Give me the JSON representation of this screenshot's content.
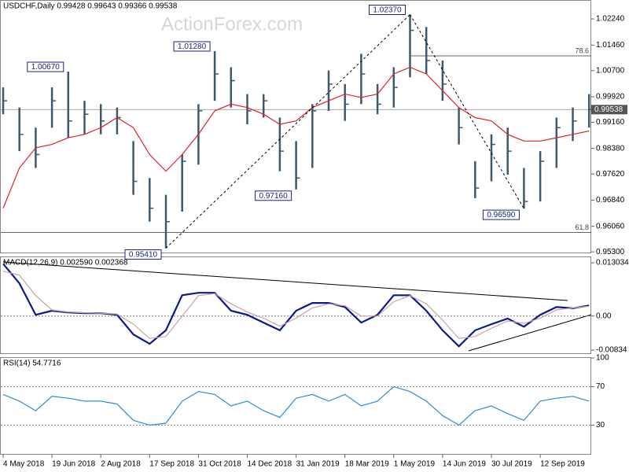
{
  "chart_data": [
    {
      "type": "hlc",
      "title": "USDCHF,Daily  0.99428 0.99643 0.99366 0.99538",
      "watermark": "ActionForex.com",
      "color": "#3d5a6c",
      "categories": [
        "4 May 2018",
        null,
        null,
        "19 Jun 2018",
        null,
        null,
        "2 Aug 2018",
        null,
        null,
        "17 Sep 2018",
        null,
        null,
        "31 Oct 2018",
        null,
        null,
        "14 Dec 2018",
        null,
        null,
        "31 Jan 2019",
        null,
        null,
        "18 Mar 2019",
        null,
        null,
        "1 May 2019",
        null,
        null,
        "14 Jun 2019",
        null,
        null,
        "30 Jul 2019",
        null,
        null,
        "12 Sep 2019",
        null,
        null,
        null
      ],
      "high": [
        1.002,
        0.996,
        0.99,
        1.002,
        1.0067,
        0.998,
        0.997,
        0.996,
        0.986,
        0.975,
        0.97,
        0.982,
        0.997,
        1.0128,
        1.008,
        1.0,
        1.0,
        0.993,
        0.986,
        0.997,
        1.007,
        1.003,
        1.012,
        1.003,
        1.008,
        1.0237,
        1.02,
        1.01,
        0.996,
        0.98,
        0.988,
        0.99,
        0.978,
        0.983,
        0.993,
        0.996,
        1.0
      ],
      "low": [
        0.994,
        0.983,
        0.978,
        0.99,
        0.987,
        0.988,
        0.988,
        0.988,
        0.97,
        0.962,
        0.9541,
        0.965,
        0.979,
        0.998,
        0.996,
        0.991,
        0.993,
        0.977,
        0.9716,
        0.978,
        0.995,
        0.992,
        0.997,
        0.994,
        0.996,
        1.005,
        1.006,
        0.998,
        0.985,
        0.969,
        0.974,
        0.976,
        0.9659,
        0.968,
        0.978,
        0.986,
        0.99
      ],
      "close": [
        0.998,
        0.988,
        0.982,
        0.998,
        0.992,
        0.994,
        0.992,
        0.993,
        0.974,
        0.966,
        0.962,
        0.98,
        0.995,
        1.006,
        1.004,
        0.995,
        0.998,
        0.983,
        0.975,
        0.995,
        1.003,
        0.997,
        1.006,
        0.997,
        1.002,
        1.019,
        1.01,
        1.003,
        0.99,
        0.972,
        0.985,
        0.983,
        0.968,
        0.98,
        0.99,
        0.992,
        0.99538
      ],
      "overlays": [
        {
          "color": "#e0202a",
          "values": [
            0.966,
            0.978,
            0.984,
            0.985,
            0.987,
            0.988,
            0.99,
            0.993,
            0.99,
            0.982,
            0.977,
            0.982,
            0.988,
            0.995,
            0.997,
            0.996,
            0.994,
            0.991,
            0.992,
            0.996,
            0.998,
            1.0,
            0.999,
            1.0,
            1.006,
            1.008,
            1.006,
            1.001,
            0.996,
            0.993,
            0.992,
            0.988,
            0.986,
            0.986,
            0.987,
            0.988,
            0.989
          ]
        }
      ],
      "annotations": [
        {
          "value": 1.0067,
          "label": "1.00670"
        },
        {
          "value": 0.9541,
          "label": "0.95410"
        },
        {
          "value": 1.0128,
          "label": "1.01280"
        },
        {
          "value": 0.9716,
          "label": "0.97160"
        },
        {
          "value": 1.0237,
          "label": "1.02370"
        },
        {
          "value": 0.9659,
          "label": "0.96590"
        }
      ],
      "levels": [
        {
          "value": 1.0114,
          "label": "78.6"
        },
        {
          "value": 0.9588,
          "label": "61.8"
        }
      ],
      "last": {
        "value": 0.99538,
        "label": "0.99538"
      },
      "ylim": [
        0.9528,
        1.0278
      ],
      "yticks": [
        {
          "value": 1.0224,
          "label": "1.02240"
        },
        {
          "value": 1.0146,
          "label": "1.01460"
        },
        {
          "value": 1.007,
          "label": "1.00700"
        },
        {
          "value": 0.9992,
          "label": "0.99920"
        },
        {
          "value": 0.9916,
          "label": "0.99160"
        },
        {
          "value": 0.9838,
          "label": "0.98380"
        },
        {
          "value": 0.9762,
          "label": "0.97620"
        },
        {
          "value": 0.9684,
          "label": "0.96840"
        },
        {
          "value": 0.9606,
          "label": "0.96060"
        },
        {
          "value": 0.953,
          "label": "0.95300"
        }
      ]
    },
    {
      "type": "line",
      "title": "MACD(12,26,9) 0.002590 0.002368",
      "zero_line": true,
      "series": [
        {
          "color": "#0a1a8c",
          "values": [
            0.0128,
            0.008,
            0.0003,
            0.0013,
            0.0009,
            0.0007,
            0.0007,
            0.0003,
            -0.0045,
            -0.0068,
            -0.0035,
            0.0051,
            0.0057,
            0.0057,
            0.0013,
            0.0003,
            -0.0016,
            -0.0035,
            0.0013,
            0.0032,
            0.0032,
            0.0022,
            -0.0016,
            0.0003,
            0.0051,
            0.0051,
            0.0013,
            -0.0035,
            -0.0074,
            -0.0035,
            -0.002,
            -0.0006,
            -0.0026,
            0.0003,
            0.0022,
            0.0019,
            0.0026
          ]
        },
        {
          "color": "#c8a0a8",
          "values": [
            0.011,
            0.01,
            0.005,
            0.0015,
            0.001,
            0.0008,
            0.0007,
            0.0005,
            -0.002,
            -0.0055,
            -0.005,
            0.0,
            0.005,
            0.0055,
            0.003,
            0.001,
            -0.0005,
            -0.0025,
            -0.0005,
            0.002,
            0.003,
            0.0025,
            0.0,
            0.0,
            0.0035,
            0.005,
            0.003,
            -0.001,
            -0.0055,
            -0.005,
            -0.003,
            -0.0012,
            -0.0018,
            -0.0005,
            0.0015,
            0.002,
            0.0024
          ]
        }
      ],
      "ylim": [
        -0.0091,
        0.0144
      ],
      "yticks": [
        0.013034,
        {
          "value": 0,
          "label": "0.00"
        },
        -0.00834
      ]
    },
    {
      "type": "line",
      "title": "RSI(14) 54.7716",
      "grid": true,
      "series": [
        {
          "color": "#2a8fd0",
          "values": [
            62,
            55,
            45,
            60,
            58,
            55,
            55,
            52,
            35,
            30,
            32,
            55,
            65,
            62,
            50,
            55,
            45,
            38,
            58,
            62,
            55,
            62,
            50,
            55,
            70,
            65,
            55,
            40,
            30,
            45,
            50,
            42,
            35,
            55,
            58,
            60,
            55
          ]
        }
      ],
      "ylim": [
        0,
        100
      ],
      "yticks": [
        100,
        70,
        30
      ]
    }
  ]
}
